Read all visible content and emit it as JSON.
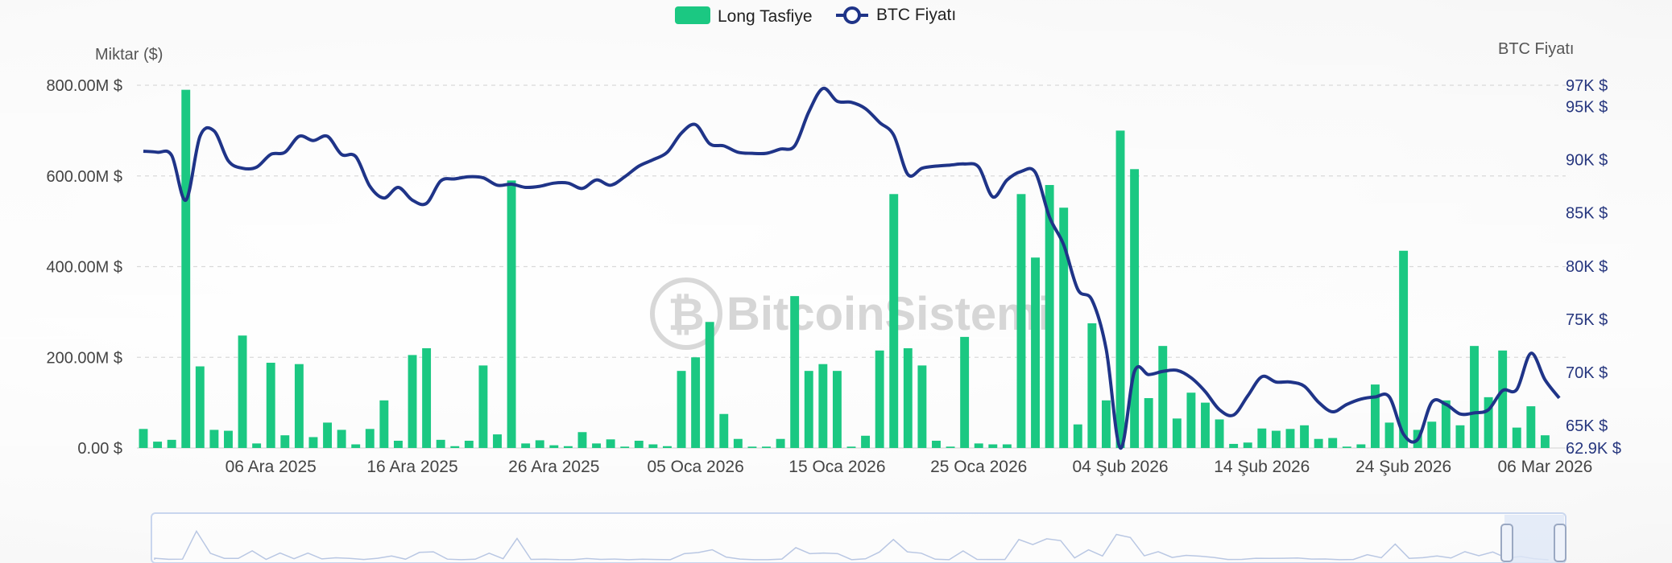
{
  "chart_data": {
    "type": "bar",
    "legend": {
      "placement": "top-center",
      "items": [
        {
          "label": "Long Tasfiye",
          "color": "#1bc882",
          "marker": "rect"
        },
        {
          "label": "BTC Fiyatı",
          "color": "#1f3488",
          "marker": "line-circle"
        }
      ]
    },
    "y_left": {
      "label": "Miktar ($)",
      "range": [
        0,
        800000000
      ],
      "ticks": [
        0,
        200000000,
        400000000,
        600000000,
        800000000
      ],
      "tick_labels": [
        "0.00 $",
        "200.00M $",
        "400.00M $",
        "600.00M $",
        "800.00M $"
      ]
    },
    "y_right": {
      "label": "BTC Fiyatı",
      "range": [
        62900,
        97000
      ],
      "ticks": [
        62900,
        65000,
        70000,
        75000,
        80000,
        85000,
        90000,
        95000,
        97000
      ],
      "tick_labels": [
        "62.9K $",
        "65K $",
        "70K $",
        "75K $",
        "80K $",
        "85K $",
        "90K $",
        "95K $",
        "97K $"
      ]
    },
    "x_axis": {
      "start": "2025-11-27",
      "end": "2026-03-07",
      "tick_dates": [
        "2025-12-06",
        "2025-12-16",
        "2025-12-26",
        "2026-01-05",
        "2026-01-15",
        "2026-01-25",
        "2026-02-04",
        "2026-02-14",
        "2026-02-24",
        "2026-03-06"
      ],
      "tick_labels": [
        "06 Ara 2025",
        "16 Ara 2025",
        "26 Ara 2025",
        "05 Oca 2026",
        "15 Oca 2026",
        "25 Oca 2026",
        "04 Şub 2026",
        "14 Şub 2026",
        "24 Şub 2026",
        "06 Mar 2026"
      ]
    },
    "grid": "horizontal-dashed",
    "series": [
      {
        "name": "Long Tasfiye",
        "type": "bar",
        "axis": "left",
        "color": "#1bc882",
        "x": [
          "2025-11-27",
          "2025-11-28",
          "2025-11-29",
          "2025-11-30",
          "2025-12-01",
          "2025-12-02",
          "2025-12-03",
          "2025-12-04",
          "2025-12-05",
          "2025-12-06",
          "2025-12-07",
          "2025-12-08",
          "2025-12-09",
          "2025-12-10",
          "2025-12-11",
          "2025-12-12",
          "2025-12-13",
          "2025-12-14",
          "2025-12-15",
          "2025-12-16",
          "2025-12-17",
          "2025-12-18",
          "2025-12-19",
          "2025-12-20",
          "2025-12-21",
          "2025-12-22",
          "2025-12-23",
          "2025-12-24",
          "2025-12-25",
          "2025-12-26",
          "2025-12-27",
          "2025-12-28",
          "2025-12-29",
          "2025-12-30",
          "2025-12-31",
          "2026-01-01",
          "2026-01-02",
          "2026-01-03",
          "2026-01-04",
          "2026-01-05",
          "2026-01-06",
          "2026-01-07",
          "2026-01-08",
          "2026-01-09",
          "2026-01-10",
          "2026-01-11",
          "2026-01-12",
          "2026-01-13",
          "2026-01-14",
          "2026-01-15",
          "2026-01-16",
          "2026-01-17",
          "2026-01-18",
          "2026-01-19",
          "2026-01-20",
          "2026-01-21",
          "2026-01-22",
          "2026-01-23",
          "2026-01-24",
          "2026-01-25",
          "2026-01-26",
          "2026-01-27",
          "2026-01-28",
          "2026-01-29",
          "2026-01-30",
          "2026-01-31",
          "2026-02-01",
          "2026-02-02",
          "2026-02-03",
          "2026-02-04",
          "2026-02-05",
          "2026-02-06",
          "2026-02-07",
          "2026-02-08",
          "2026-02-09",
          "2026-02-10",
          "2026-02-11",
          "2026-02-12",
          "2026-02-13",
          "2026-02-14",
          "2026-02-15",
          "2026-02-16",
          "2026-02-17",
          "2026-02-18",
          "2026-02-19",
          "2026-02-20",
          "2026-02-21",
          "2026-02-22",
          "2026-02-23",
          "2026-02-24",
          "2026-02-25",
          "2026-02-26",
          "2026-02-27",
          "2026-02-28",
          "2026-03-01",
          "2026-03-02",
          "2026-03-03",
          "2026-03-04",
          "2026-03-05",
          "2026-03-06",
          "2026-03-07"
        ],
        "values": [
          42000000,
          14000000,
          18000000,
          790000000,
          180000000,
          40000000,
          38000000,
          248000000,
          10000000,
          188000000,
          28000000,
          185000000,
          24000000,
          56000000,
          40000000,
          8000000,
          42000000,
          105000000,
          16000000,
          205000000,
          220000000,
          18000000,
          4000000,
          16000000,
          182000000,
          30000000,
          590000000,
          10000000,
          17000000,
          6000000,
          4000000,
          35000000,
          10000000,
          19000000,
          3000000,
          16000000,
          8000000,
          4000000,
          170000000,
          200000000,
          278000000,
          75000000,
          20000000,
          3000000,
          3000000,
          20000000,
          335000000,
          170000000,
          185000000,
          170000000,
          3000000,
          27000000,
          215000000,
          560000000,
          220000000,
          182000000,
          16000000,
          3000000,
          245000000,
          10000000,
          8000000,
          8000000,
          560000000,
          420000000,
          580000000,
          530000000,
          52000000,
          275000000,
          105000000,
          700000000,
          615000000,
          110000000,
          225000000,
          65000000,
          122000000,
          100000000,
          63000000,
          9000000,
          12000000,
          43000000,
          38000000,
          42000000,
          50000000,
          20000000,
          22000000,
          3000000,
          8000000,
          140000000,
          56000000,
          435000000,
          40000000,
          58000000,
          105000000,
          50000000,
          225000000,
          112000000,
          215000000,
          45000000,
          92000000,
          28000000,
          0
        ]
      },
      {
        "name": "BTC Fiyatı",
        "type": "line",
        "axis": "right",
        "color": "#1f3488",
        "x": [
          "2025-11-27",
          "2025-11-28",
          "2025-11-29",
          "2025-11-30",
          "2025-12-01",
          "2025-12-02",
          "2025-12-03",
          "2025-12-04",
          "2025-12-05",
          "2025-12-06",
          "2025-12-07",
          "2025-12-08",
          "2025-12-09",
          "2025-12-10",
          "2025-12-11",
          "2025-12-12",
          "2025-12-13",
          "2025-12-14",
          "2025-12-15",
          "2025-12-16",
          "2025-12-17",
          "2025-12-18",
          "2025-12-19",
          "2025-12-20",
          "2025-12-21",
          "2025-12-22",
          "2025-12-23",
          "2025-12-24",
          "2025-12-25",
          "2025-12-26",
          "2025-12-27",
          "2025-12-28",
          "2025-12-29",
          "2025-12-30",
          "2025-12-31",
          "2026-01-01",
          "2026-01-02",
          "2026-01-03",
          "2026-01-04",
          "2026-01-05",
          "2026-01-06",
          "2026-01-07",
          "2026-01-08",
          "2026-01-09",
          "2026-01-10",
          "2026-01-11",
          "2026-01-12",
          "2026-01-13",
          "2026-01-14",
          "2026-01-15",
          "2026-01-16",
          "2026-01-17",
          "2026-01-18",
          "2026-01-19",
          "2026-01-20",
          "2026-01-21",
          "2026-01-22",
          "2026-01-23",
          "2026-01-24",
          "2026-01-25",
          "2026-01-26",
          "2026-01-27",
          "2026-01-28",
          "2026-01-29",
          "2026-01-30",
          "2026-01-31",
          "2026-02-01",
          "2026-02-02",
          "2026-02-03",
          "2026-02-04",
          "2026-02-05",
          "2026-02-06",
          "2026-02-07",
          "2026-02-08",
          "2026-02-09",
          "2026-02-10",
          "2026-02-11",
          "2026-02-12",
          "2026-02-13",
          "2026-02-14",
          "2026-02-15",
          "2026-02-16",
          "2026-02-17",
          "2026-02-18",
          "2026-02-19",
          "2026-02-20",
          "2026-02-21",
          "2026-02-22",
          "2026-02-23",
          "2026-02-24",
          "2026-02-25",
          "2026-02-26",
          "2026-02-27",
          "2026-02-28",
          "2026-03-01",
          "2026-03-02",
          "2026-03-03",
          "2026-03-04",
          "2026-03-05",
          "2026-03-06",
          "2026-03-07"
        ],
        "values": [
          90800,
          90700,
          90400,
          86200,
          92200,
          92700,
          89900,
          89200,
          89300,
          90500,
          90700,
          92200,
          91800,
          92200,
          90500,
          90300,
          87500,
          86400,
          87400,
          86200,
          85900,
          88000,
          88200,
          88400,
          88300,
          87600,
          87700,
          87400,
          87500,
          87800,
          87800,
          87300,
          88100,
          87600,
          88400,
          89400,
          90000,
          90700,
          92500,
          93300,
          91500,
          91300,
          90700,
          90600,
          90600,
          91000,
          91300,
          94500,
          96700,
          95500,
          95400,
          94800,
          93500,
          92300,
          88600,
          89200,
          89400,
          89500,
          89600,
          89300,
          86500,
          88100,
          88900,
          88800,
          84600,
          82000,
          77800,
          76800,
          72200,
          62900,
          70100,
          69800,
          70100,
          70200,
          69500,
          68200,
          66500,
          66000,
          67800,
          69600,
          69100,
          69100,
          68700,
          67200,
          66300,
          67000,
          67500,
          67700,
          67700,
          64200,
          63700,
          67200,
          67000,
          66100,
          66200,
          66500,
          68300,
          68400,
          71800,
          69300,
          67600
        ]
      }
    ]
  },
  "watermark": "BitcoinSistemi",
  "navigator": {
    "visible": true
  }
}
